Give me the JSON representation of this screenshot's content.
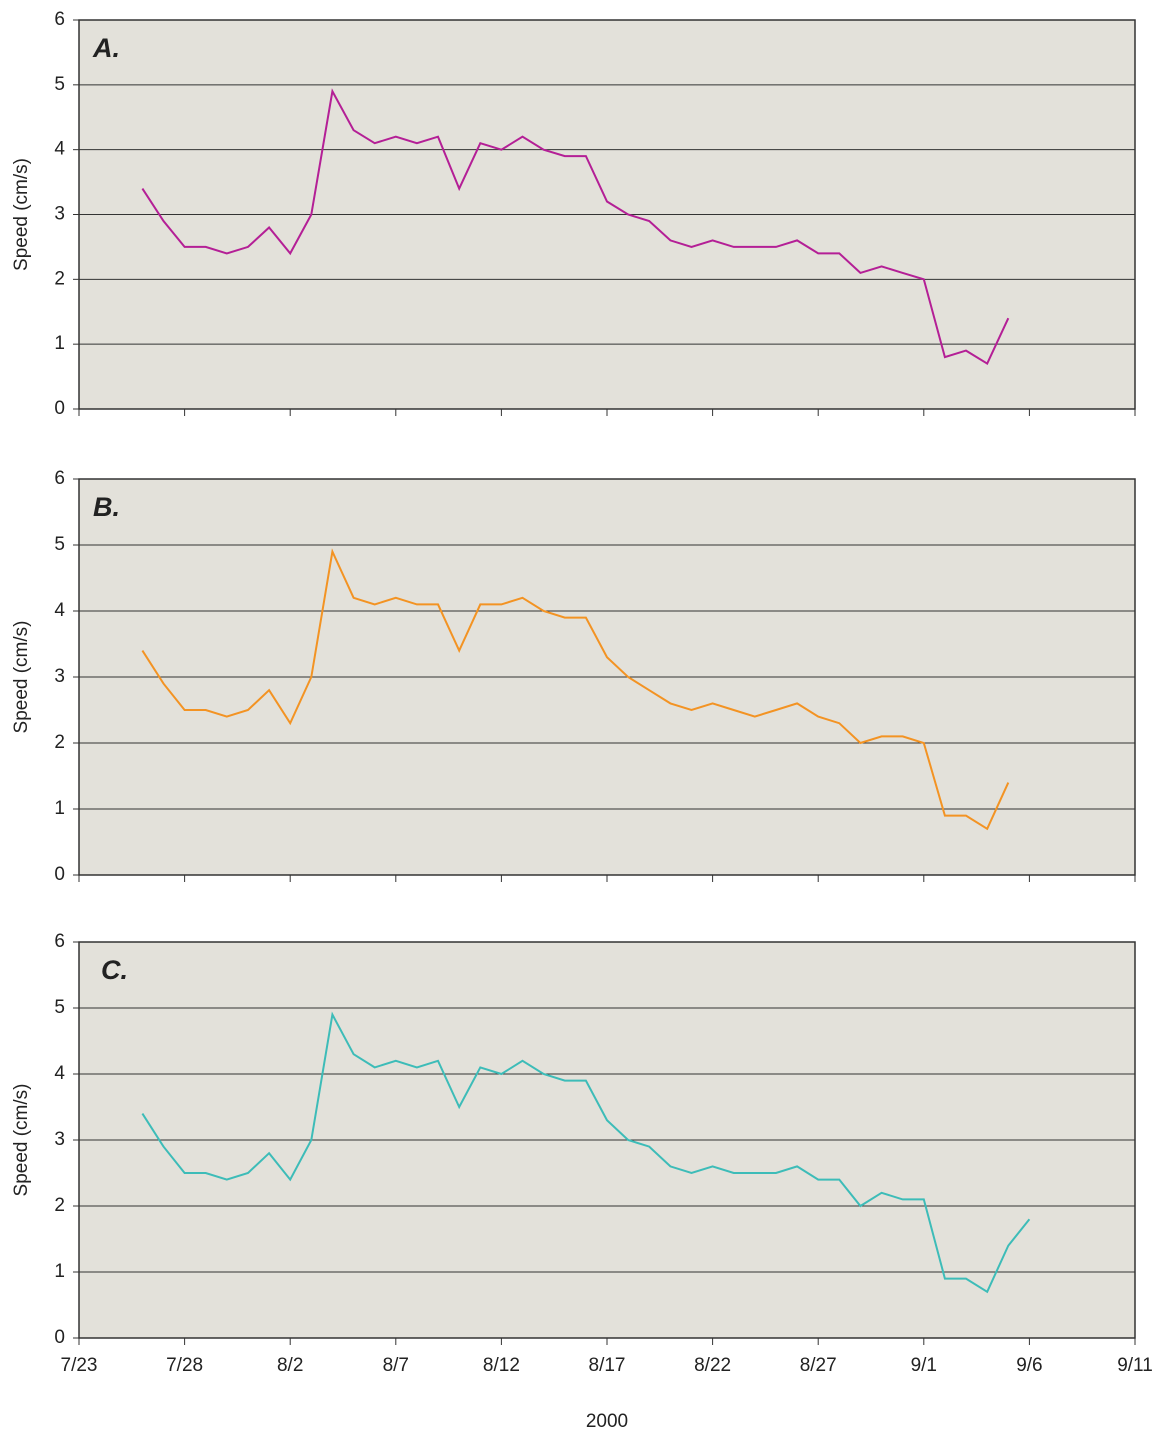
{
  "chart_data": [
    {
      "type": "line",
      "title": "A.",
      "ylabel": "Speed (cm/s)",
      "color": "#b41f96",
      "x": [
        "7/26",
        "7/27",
        "7/28",
        "7/29",
        "7/30",
        "7/31",
        "8/1",
        "8/2",
        "8/3",
        "8/4",
        "8/5",
        "8/6",
        "8/7",
        "8/8",
        "8/9",
        "8/10",
        "8/11",
        "8/12",
        "8/13",
        "8/14",
        "8/15",
        "8/16",
        "8/17",
        "8/18",
        "8/19",
        "8/20",
        "8/21",
        "8/22",
        "8/23",
        "8/24",
        "8/25",
        "8/26",
        "8/27",
        "8/28",
        "8/29",
        "8/30",
        "8/31",
        "9/1",
        "9/2",
        "9/3",
        "9/4",
        "9/5"
      ],
      "values": [
        3.4,
        2.9,
        2.5,
        2.5,
        2.4,
        2.5,
        2.8,
        2.4,
        3.0,
        4.9,
        4.3,
        4.1,
        4.2,
        4.1,
        4.2,
        3.4,
        4.1,
        4.0,
        4.2,
        4.0,
        3.9,
        3.9,
        3.2,
        3.0,
        2.9,
        2.6,
        2.5,
        2.6,
        2.5,
        2.5,
        2.5,
        2.6,
        2.4,
        2.4,
        2.1,
        2.2,
        2.1,
        2.0,
        0.8,
        0.9,
        0.7,
        1.4
      ],
      "ylim": [
        0,
        6
      ],
      "yticks": [
        0,
        1,
        2,
        3,
        4,
        5,
        6
      ],
      "xlim": [
        "7/23",
        "9/11"
      ],
      "grid": true
    },
    {
      "type": "line",
      "title": "B.",
      "ylabel": "Speed (cm/s)",
      "color": "#f39323",
      "x": [
        "7/26",
        "7/27",
        "7/28",
        "7/29",
        "7/30",
        "7/31",
        "8/1",
        "8/2",
        "8/3",
        "8/4",
        "8/5",
        "8/6",
        "8/7",
        "8/8",
        "8/9",
        "8/10",
        "8/11",
        "8/12",
        "8/13",
        "8/14",
        "8/15",
        "8/16",
        "8/17",
        "8/18",
        "8/19",
        "8/20",
        "8/21",
        "8/22",
        "8/23",
        "8/24",
        "8/25",
        "8/26",
        "8/27",
        "8/28",
        "8/29",
        "8/30",
        "8/31",
        "9/1",
        "9/2",
        "9/3",
        "9/4",
        "9/5"
      ],
      "values": [
        3.4,
        2.9,
        2.5,
        2.5,
        2.4,
        2.5,
        2.8,
        2.3,
        3.0,
        4.9,
        4.2,
        4.1,
        4.2,
        4.1,
        4.1,
        3.4,
        4.1,
        4.1,
        4.2,
        4.0,
        3.9,
        3.9,
        3.3,
        3.0,
        2.8,
        2.6,
        2.5,
        2.6,
        2.5,
        2.4,
        2.5,
        2.6,
        2.4,
        2.3,
        2.0,
        2.1,
        2.1,
        2.0,
        0.9,
        0.9,
        0.7,
        1.4
      ],
      "ylim": [
        0,
        6
      ],
      "yticks": [
        0,
        1,
        2,
        3,
        4,
        5,
        6
      ],
      "xlim": [
        "7/23",
        "9/11"
      ],
      "grid": true
    },
    {
      "type": "line",
      "title": "C.",
      "ylabel": "Speed (cm/s)",
      "xlabel": "2000",
      "color": "#3dbcb8",
      "x": [
        "7/26",
        "7/27",
        "7/28",
        "7/29",
        "7/30",
        "7/31",
        "8/1",
        "8/2",
        "8/3",
        "8/4",
        "8/5",
        "8/6",
        "8/7",
        "8/8",
        "8/9",
        "8/10",
        "8/11",
        "8/12",
        "8/13",
        "8/14",
        "8/15",
        "8/16",
        "8/17",
        "8/18",
        "8/19",
        "8/20",
        "8/21",
        "8/22",
        "8/23",
        "8/24",
        "8/25",
        "8/26",
        "8/27",
        "8/28",
        "8/29",
        "8/30",
        "8/31",
        "9/1",
        "9/2",
        "9/3",
        "9/4",
        "9/5",
        "9/6"
      ],
      "values": [
        3.4,
        2.9,
        2.5,
        2.5,
        2.4,
        2.5,
        2.8,
        2.4,
        3.0,
        4.9,
        4.3,
        4.1,
        4.2,
        4.1,
        4.2,
        3.5,
        4.1,
        4.0,
        4.2,
        4.0,
        3.9,
        3.9,
        3.3,
        3.0,
        2.9,
        2.6,
        2.5,
        2.6,
        2.5,
        2.5,
        2.5,
        2.6,
        2.4,
        2.4,
        2.0,
        2.2,
        2.1,
        2.1,
        0.9,
        0.9,
        0.7,
        1.4,
        1.8
      ],
      "ylim": [
        0,
        6
      ],
      "yticks": [
        0,
        1,
        2,
        3,
        4,
        5,
        6
      ],
      "xlim": [
        "7/23",
        "9/11"
      ],
      "xticks": [
        "7/23",
        "7/28",
        "8/2",
        "8/7",
        "8/12",
        "8/17",
        "8/22",
        "8/27",
        "9/1",
        "9/6",
        "9/11"
      ],
      "grid": true
    }
  ]
}
